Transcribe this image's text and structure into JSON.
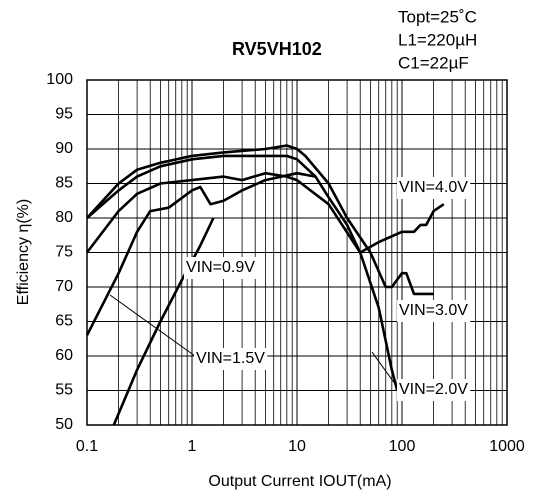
{
  "chart_data": {
    "type": "line",
    "title": "RV5VH102",
    "annotations": [
      "Topt=25˚C",
      "L1=220µH",
      "C1=22µF"
    ],
    "x_label": "Output Current IOUT(mA)",
    "y_label": "Efficiency η(%)",
    "xscale": "log",
    "grid": true,
    "xlim": [
      0.1,
      1000
    ],
    "ylim": [
      50,
      100
    ],
    "xticks": [
      0.1,
      1,
      10,
      100,
      1000
    ],
    "yticks": [
      50,
      55,
      60,
      65,
      70,
      75,
      80,
      85,
      90,
      95,
      100
    ],
    "series": [
      {
        "name": "VIN=0.9V",
        "color": "#000000",
        "x": [
          0.18,
          0.3,
          0.5,
          0.8,
          1.2,
          1.6
        ],
        "values": [
          50,
          58,
          65,
          71,
          76,
          80
        ]
      },
      {
        "name": "VIN=1.5V",
        "color": "#000000",
        "x": [
          0.1,
          0.2,
          0.3,
          0.4,
          0.6,
          1,
          1.2,
          1.5,
          2,
          3,
          5,
          10,
          15
        ],
        "values": [
          63,
          72,
          78,
          81,
          81.5,
          84,
          84.5,
          82,
          82.5,
          84,
          85.5,
          86.5,
          86
        ]
      },
      {
        "name": "VIN=2.0V",
        "color": "#000000",
        "x": [
          0.1,
          0.2,
          0.3,
          0.5,
          1,
          2,
          3,
          5,
          8,
          10,
          20,
          40,
          60,
          80,
          90
        ],
        "values": [
          75,
          81,
          83.5,
          85,
          85.5,
          86,
          85.5,
          86.5,
          86,
          85.5,
          82,
          75,
          67,
          58,
          55
        ]
      },
      {
        "name": "VIN=3.0V",
        "color": "#000000",
        "x": [
          0.1,
          0.2,
          0.3,
          0.5,
          1,
          2,
          5,
          8,
          10,
          12,
          20,
          30,
          50,
          70,
          80,
          100,
          110,
          130,
          200
        ],
        "values": [
          80,
          85,
          87,
          88,
          89,
          89.5,
          90,
          90.5,
          90,
          89,
          85,
          80,
          75,
          70,
          70,
          72,
          72,
          69,
          69
        ]
      },
      {
        "name": "VIN=4.0V",
        "color": "#000000",
        "x": [
          0.1,
          0.2,
          0.3,
          0.5,
          1,
          2,
          5,
          8,
          10,
          15,
          20,
          30,
          40,
          60,
          100,
          130,
          150,
          170,
          200,
          250
        ],
        "values": [
          80,
          84,
          86,
          87.5,
          88.5,
          89,
          89,
          89,
          88.5,
          86,
          83,
          79,
          75,
          76.5,
          78,
          78,
          79,
          79,
          81,
          82
        ]
      }
    ]
  }
}
